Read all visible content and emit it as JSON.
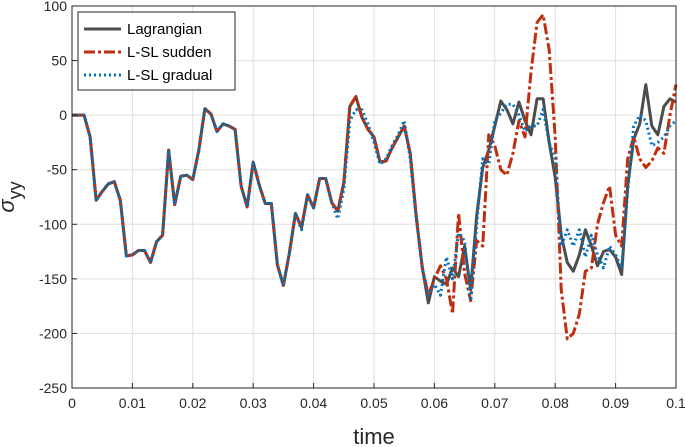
{
  "chart_data": {
    "type": "line",
    "xlabel": "time",
    "ylabel": "σ",
    "ylabel_sub": "yy",
    "xlim": [
      0,
      0.1
    ],
    "ylim": [
      -250,
      100
    ],
    "grid": true,
    "legend_position": "top-left",
    "x_ticks": [
      0,
      0.01,
      0.02,
      0.03,
      0.04,
      0.05,
      0.06,
      0.07,
      0.08,
      0.09,
      0.1
    ],
    "x_tick_labels": [
      "0",
      "0.01",
      "0.02",
      "0.03",
      "0.04",
      "0.05",
      "0.06",
      "0.07",
      "0.08",
      "0.09",
      "0.1"
    ],
    "y_ticks": [
      -250,
      -200,
      -150,
      -100,
      -50,
      0,
      50,
      100
    ],
    "y_tick_labels": [
      "-250",
      "-200",
      "-150",
      "-100",
      "-50",
      "0",
      "50",
      "100"
    ],
    "series": [
      {
        "name": "Lagrangian",
        "color": "#4d4d4d",
        "style": "solid",
        "points": [
          [
            0,
            0
          ],
          [
            0.002,
            0
          ],
          [
            0.003,
            -20
          ],
          [
            0.004,
            -78
          ],
          [
            0.005,
            -70
          ],
          [
            0.006,
            -63
          ],
          [
            0.007,
            -61
          ],
          [
            0.008,
            -78
          ],
          [
            0.009,
            -129
          ],
          [
            0.01,
            -128
          ],
          [
            0.011,
            -124
          ],
          [
            0.012,
            -124
          ],
          [
            0.013,
            -135
          ],
          [
            0.014,
            -116
          ],
          [
            0.015,
            -110
          ],
          [
            0.016,
            -32
          ],
          [
            0.017,
            -82
          ],
          [
            0.018,
            -56
          ],
          [
            0.019,
            -55
          ],
          [
            0.02,
            -59
          ],
          [
            0.021,
            -32
          ],
          [
            0.022,
            6
          ],
          [
            0.023,
            1
          ],
          [
            0.024,
            -15
          ],
          [
            0.025,
            -8
          ],
          [
            0.026,
            -10
          ],
          [
            0.027,
            -13
          ],
          [
            0.028,
            -65
          ],
          [
            0.029,
            -84
          ],
          [
            0.03,
            -43
          ],
          [
            0.031,
            -64
          ],
          [
            0.032,
            -81
          ],
          [
            0.033,
            -81
          ],
          [
            0.034,
            -137
          ],
          [
            0.035,
            -156
          ],
          [
            0.036,
            -126
          ],
          [
            0.037,
            -90
          ],
          [
            0.038,
            -103
          ],
          [
            0.039,
            -73
          ],
          [
            0.04,
            -85
          ],
          [
            0.041,
            -58
          ],
          [
            0.042,
            -58
          ],
          [
            0.043,
            -80
          ],
          [
            0.044,
            -88
          ],
          [
            0.045,
            -62
          ],
          [
            0.046,
            8
          ],
          [
            0.047,
            17
          ],
          [
            0.048,
            -2
          ],
          [
            0.049,
            -13
          ],
          [
            0.05,
            -20
          ],
          [
            0.051,
            -43
          ],
          [
            0.052,
            -42
          ],
          [
            0.053,
            -30
          ],
          [
            0.054,
            -20
          ],
          [
            0.055,
            -10
          ],
          [
            0.056,
            -35
          ],
          [
            0.057,
            -93
          ],
          [
            0.058,
            -140
          ],
          [
            0.059,
            -172
          ],
          [
            0.06,
            -148
          ],
          [
            0.061,
            -152
          ],
          [
            0.062,
            -155
          ],
          [
            0.063,
            -140
          ],
          [
            0.064,
            -148
          ],
          [
            0.065,
            -120
          ],
          [
            0.066,
            -160
          ],
          [
            0.067,
            -92
          ],
          [
            0.068,
            -48
          ],
          [
            0.069,
            -32
          ],
          [
            0.07,
            -10
          ],
          [
            0.071,
            13
          ],
          [
            0.072,
            5
          ],
          [
            0.073,
            -8
          ],
          [
            0.074,
            12
          ],
          [
            0.075,
            -5
          ],
          [
            0.076,
            -18
          ],
          [
            0.077,
            15
          ],
          [
            0.078,
            15
          ],
          [
            0.079,
            -25
          ],
          [
            0.08,
            -57
          ],
          [
            0.081,
            -110
          ],
          [
            0.082,
            -135
          ],
          [
            0.083,
            -143
          ],
          [
            0.084,
            -128
          ],
          [
            0.085,
            -105
          ],
          [
            0.086,
            -120
          ],
          [
            0.087,
            -138
          ],
          [
            0.088,
            -125
          ],
          [
            0.089,
            -123
          ],
          [
            0.09,
            -130
          ],
          [
            0.091,
            -146
          ],
          [
            0.092,
            -65
          ],
          [
            0.093,
            -22
          ],
          [
            0.094,
            -8
          ],
          [
            0.095,
            28
          ],
          [
            0.096,
            -10
          ],
          [
            0.097,
            -18
          ],
          [
            0.098,
            8
          ],
          [
            0.099,
            15
          ],
          [
            0.1,
            12
          ]
        ]
      },
      {
        "name": "L-SL sudden",
        "color": "#bf2e0e",
        "style": "dashdot",
        "points": [
          [
            0,
            0
          ],
          [
            0.002,
            0
          ],
          [
            0.003,
            -20
          ],
          [
            0.004,
            -78
          ],
          [
            0.005,
            -70
          ],
          [
            0.006,
            -63
          ],
          [
            0.007,
            -61
          ],
          [
            0.008,
            -78
          ],
          [
            0.009,
            -129
          ],
          [
            0.01,
            -128
          ],
          [
            0.011,
            -124
          ],
          [
            0.012,
            -124
          ],
          [
            0.013,
            -135
          ],
          [
            0.014,
            -116
          ],
          [
            0.015,
            -110
          ],
          [
            0.016,
            -32
          ],
          [
            0.017,
            -82
          ],
          [
            0.018,
            -56
          ],
          [
            0.019,
            -55
          ],
          [
            0.02,
            -59
          ],
          [
            0.021,
            -32
          ],
          [
            0.022,
            6
          ],
          [
            0.023,
            1
          ],
          [
            0.024,
            -15
          ],
          [
            0.025,
            -8
          ],
          [
            0.026,
            -10
          ],
          [
            0.027,
            -13
          ],
          [
            0.028,
            -65
          ],
          [
            0.029,
            -84
          ],
          [
            0.03,
            -43
          ],
          [
            0.031,
            -64
          ],
          [
            0.032,
            -81
          ],
          [
            0.033,
            -81
          ],
          [
            0.034,
            -137
          ],
          [
            0.035,
            -156
          ],
          [
            0.036,
            -126
          ],
          [
            0.037,
            -90
          ],
          [
            0.038,
            -103
          ],
          [
            0.039,
            -73
          ],
          [
            0.04,
            -85
          ],
          [
            0.041,
            -58
          ],
          [
            0.042,
            -58
          ],
          [
            0.043,
            -80
          ],
          [
            0.044,
            -88
          ],
          [
            0.045,
            -62
          ],
          [
            0.046,
            8
          ],
          [
            0.047,
            17
          ],
          [
            0.048,
            -2
          ],
          [
            0.049,
            -13
          ],
          [
            0.05,
            -20
          ],
          [
            0.051,
            -43
          ],
          [
            0.052,
            -42
          ],
          [
            0.053,
            -30
          ],
          [
            0.054,
            -20
          ],
          [
            0.055,
            -10
          ],
          [
            0.056,
            -35
          ],
          [
            0.057,
            -93
          ],
          [
            0.058,
            -140
          ],
          [
            0.059,
            -165
          ],
          [
            0.06,
            -150
          ],
          [
            0.061,
            -138
          ],
          [
            0.062,
            -150
          ],
          [
            0.063,
            -182
          ],
          [
            0.064,
            -90
          ],
          [
            0.065,
            -145
          ],
          [
            0.066,
            -170
          ],
          [
            0.067,
            -115
          ],
          [
            0.068,
            -120
          ],
          [
            0.069,
            -18
          ],
          [
            0.07,
            -28
          ],
          [
            0.071,
            -50
          ],
          [
            0.072,
            -55
          ],
          [
            0.073,
            -35
          ],
          [
            0.074,
            -5
          ],
          [
            0.075,
            -20
          ],
          [
            0.076,
            40
          ],
          [
            0.077,
            85
          ],
          [
            0.078,
            92
          ],
          [
            0.079,
            60
          ],
          [
            0.08,
            -20
          ],
          [
            0.081,
            -160
          ],
          [
            0.082,
            -205
          ],
          [
            0.083,
            -200
          ],
          [
            0.084,
            -182
          ],
          [
            0.085,
            -143
          ],
          [
            0.086,
            -140
          ],
          [
            0.087,
            -100
          ],
          [
            0.088,
            -80
          ],
          [
            0.089,
            -65
          ],
          [
            0.09,
            -110
          ],
          [
            0.091,
            -120
          ],
          [
            0.092,
            -40
          ],
          [
            0.093,
            -20
          ],
          [
            0.094,
            -40
          ],
          [
            0.095,
            -48
          ],
          [
            0.096,
            -42
          ],
          [
            0.097,
            -30
          ],
          [
            0.098,
            -35
          ],
          [
            0.099,
            0
          ],
          [
            0.1,
            28
          ]
        ]
      },
      {
        "name": "L-SL gradual",
        "color": "#0072bd",
        "style": "dotted",
        "points": [
          [
            0,
            0
          ],
          [
            0.002,
            0
          ],
          [
            0.003,
            -20
          ],
          [
            0.004,
            -78
          ],
          [
            0.005,
            -70
          ],
          [
            0.006,
            -63
          ],
          [
            0.007,
            -61
          ],
          [
            0.008,
            -78
          ],
          [
            0.009,
            -129
          ],
          [
            0.01,
            -128
          ],
          [
            0.011,
            -124
          ],
          [
            0.012,
            -124
          ],
          [
            0.013,
            -135
          ],
          [
            0.014,
            -116
          ],
          [
            0.015,
            -110
          ],
          [
            0.016,
            -32
          ],
          [
            0.017,
            -82
          ],
          [
            0.018,
            -56
          ],
          [
            0.019,
            -55
          ],
          [
            0.02,
            -59
          ],
          [
            0.021,
            -32
          ],
          [
            0.022,
            6
          ],
          [
            0.023,
            1
          ],
          [
            0.024,
            -15
          ],
          [
            0.025,
            -8
          ],
          [
            0.026,
            -10
          ],
          [
            0.027,
            -13
          ],
          [
            0.028,
            -65
          ],
          [
            0.029,
            -84
          ],
          [
            0.03,
            -43
          ],
          [
            0.031,
            -64
          ],
          [
            0.032,
            -81
          ],
          [
            0.033,
            -81
          ],
          [
            0.034,
            -137
          ],
          [
            0.035,
            -156
          ],
          [
            0.036,
            -126
          ],
          [
            0.037,
            -90
          ],
          [
            0.038,
            -105
          ],
          [
            0.039,
            -73
          ],
          [
            0.04,
            -85
          ],
          [
            0.041,
            -58
          ],
          [
            0.042,
            -58
          ],
          [
            0.043,
            -80
          ],
          [
            0.044,
            -95
          ],
          [
            0.045,
            -68
          ],
          [
            0.046,
            -5
          ],
          [
            0.047,
            5
          ],
          [
            0.048,
            5
          ],
          [
            0.049,
            -8
          ],
          [
            0.05,
            -25
          ],
          [
            0.051,
            -45
          ],
          [
            0.052,
            -40
          ],
          [
            0.053,
            -28
          ],
          [
            0.054,
            -18
          ],
          [
            0.055,
            -5
          ],
          [
            0.056,
            -40
          ],
          [
            0.057,
            -95
          ],
          [
            0.058,
            -140
          ],
          [
            0.059,
            -165
          ],
          [
            0.06,
            -155
          ],
          [
            0.061,
            -165
          ],
          [
            0.062,
            -130
          ],
          [
            0.063,
            -150
          ],
          [
            0.064,
            -108
          ],
          [
            0.065,
            -115
          ],
          [
            0.066,
            -170
          ],
          [
            0.067,
            -100
          ],
          [
            0.068,
            -40
          ],
          [
            0.069,
            -45
          ],
          [
            0.07,
            -5
          ],
          [
            0.071,
            2
          ],
          [
            0.072,
            10
          ],
          [
            0.073,
            10
          ],
          [
            0.074,
            0
          ],
          [
            0.075,
            -15
          ],
          [
            0.076,
            -10
          ],
          [
            0.077,
            -10
          ],
          [
            0.078,
            5
          ],
          [
            0.079,
            -25
          ],
          [
            0.08,
            -40
          ],
          [
            0.081,
            -120
          ],
          [
            0.082,
            -105
          ],
          [
            0.083,
            -120
          ],
          [
            0.084,
            -105
          ],
          [
            0.085,
            -130
          ],
          [
            0.086,
            -110
          ],
          [
            0.087,
            -128
          ],
          [
            0.088,
            -140
          ],
          [
            0.089,
            -120
          ],
          [
            0.09,
            -128
          ],
          [
            0.091,
            -140
          ],
          [
            0.092,
            -70
          ],
          [
            0.093,
            -10
          ],
          [
            0.094,
            0
          ],
          [
            0.095,
            -5
          ],
          [
            0.096,
            -28
          ],
          [
            0.097,
            -25
          ],
          [
            0.098,
            -20
          ],
          [
            0.099,
            -10
          ],
          [
            0.1,
            -5
          ]
        ]
      }
    ]
  }
}
